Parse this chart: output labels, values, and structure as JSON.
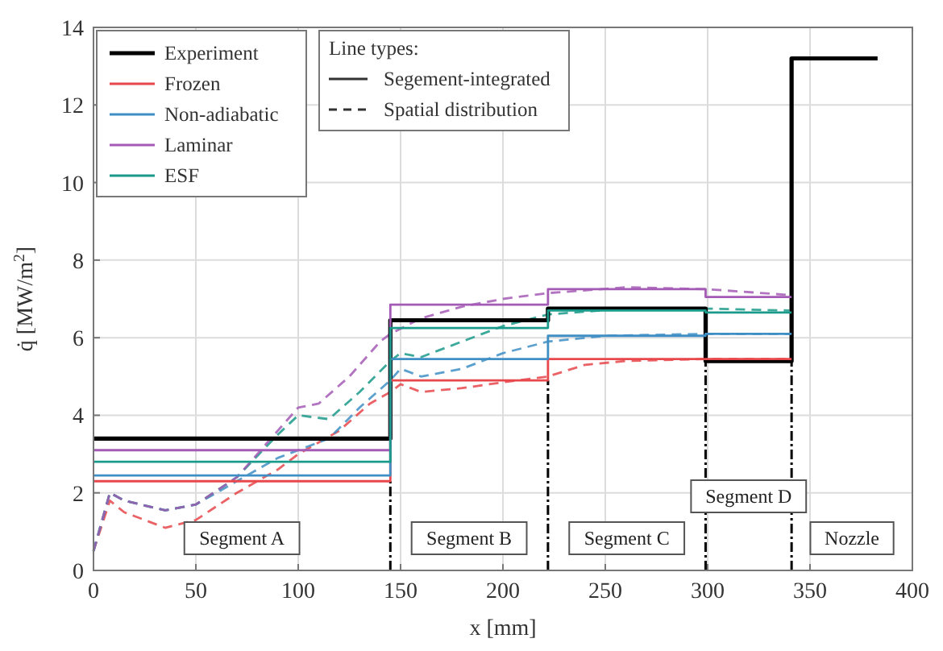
{
  "chart_data": {
    "type": "step",
    "xlabel": "x [mm]",
    "ylabel": "q̇ [MW/m$^{2}$]",
    "xlim": [
      0,
      400
    ],
    "xticks": [
      0,
      50,
      100,
      150,
      200,
      250,
      300,
      350,
      400
    ],
    "ylim": [
      0,
      14
    ],
    "yticks": [
      0,
      2,
      4,
      6,
      8,
      10,
      12,
      14
    ],
    "grid": true,
    "legend": "top left",
    "legend_title": "Line types:",
    "series": [
      {
        "name": "Experiment",
        "color": "#000000",
        "x": [
          0,
          145,
          222,
          299,
          341,
          383
        ],
        "values": [
          3.4,
          6.45,
          6.75,
          5.4,
          13.2,
          13.2
        ]
      },
      {
        "name": "Frozen",
        "color": "#e8474b",
        "x": [
          0,
          145,
          222,
          299,
          341
        ],
        "values": [
          2.3,
          4.9,
          5.45,
          5.45,
          5.45
        ]
      },
      {
        "name": "Non-adiabatic",
        "color": "#3f8fc5",
        "x": [
          0,
          145,
          222,
          299,
          341
        ],
        "values": [
          2.45,
          5.45,
          6.05,
          6.1,
          6.1
        ]
      },
      {
        "name": "Laminar",
        "color": "#a45bb5",
        "x": [
          0,
          145,
          222,
          299,
          341
        ],
        "values": [
          3.1,
          6.85,
          7.25,
          7.05,
          7.05
        ]
      },
      {
        "name": "ESF",
        "color": "#1a9a8a",
        "x": [
          0,
          145,
          222,
          299,
          341
        ],
        "values": [
          2.8,
          6.25,
          6.7,
          6.65,
          6.65
        ]
      },
      {
        "type": "line",
        "line_style": "dashed",
        "color": "#e8474b",
        "x": [
          0,
          8,
          15,
          35,
          50,
          70,
          90,
          100,
          120,
          135,
          145,
          150,
          160,
          180,
          200,
          222,
          240,
          260,
          300,
          340
        ],
        "values": [
          0.5,
          1.8,
          1.5,
          1.1,
          1.3,
          2.0,
          2.6,
          3.0,
          3.6,
          4.3,
          4.6,
          4.8,
          4.6,
          4.7,
          4.85,
          5.0,
          5.3,
          5.4,
          5.45,
          5.45
        ]
      },
      {
        "type": "line",
        "line_style": "dashed",
        "color": "#3f8fc5",
        "x": [
          0,
          8,
          15,
          35,
          50,
          70,
          90,
          100,
          115,
          130,
          145,
          150,
          160,
          180,
          200,
          222,
          250,
          300,
          340
        ],
        "values": [
          0.5,
          2.0,
          1.8,
          1.55,
          1.7,
          2.3,
          2.9,
          3.1,
          3.4,
          4.2,
          4.9,
          5.2,
          5.0,
          5.2,
          5.6,
          5.9,
          6.05,
          6.1,
          6.1
        ]
      },
      {
        "type": "line",
        "line_style": "dashed",
        "color": "#1a9a8a",
        "x": [
          0,
          8,
          15,
          35,
          50,
          70,
          90,
          100,
          115,
          130,
          145,
          150,
          160,
          180,
          200,
          222,
          260,
          300,
          340
        ],
        "values": [
          0.5,
          2.0,
          1.8,
          1.55,
          1.7,
          2.4,
          3.5,
          4.0,
          3.9,
          4.6,
          5.4,
          5.6,
          5.5,
          5.9,
          6.3,
          6.6,
          6.75,
          6.75,
          6.7
        ]
      },
      {
        "type": "line",
        "line_style": "dashed",
        "color": "#a45bb5",
        "x": [
          0,
          8,
          15,
          35,
          50,
          70,
          90,
          100,
          110,
          125,
          140,
          145,
          160,
          180,
          200,
          222,
          260,
          300,
          340
        ],
        "values": [
          0.5,
          2.0,
          1.8,
          1.55,
          1.7,
          2.4,
          3.6,
          4.2,
          4.3,
          5.0,
          5.9,
          6.1,
          6.5,
          6.8,
          7.0,
          7.15,
          7.3,
          7.25,
          7.1
        ]
      }
    ],
    "ref_lines": [
      {
        "axis": "x",
        "value": 145
      },
      {
        "axis": "x",
        "value": 222
      },
      {
        "axis": "x",
        "value": 299
      },
      {
        "axis": "x",
        "value": 341
      }
    ],
    "annotations": [
      "Segement-integrated",
      "Spatial distribution",
      "Segment A",
      "Segment B",
      "Segment C",
      "Segment D",
      "Nozzle"
    ]
  }
}
